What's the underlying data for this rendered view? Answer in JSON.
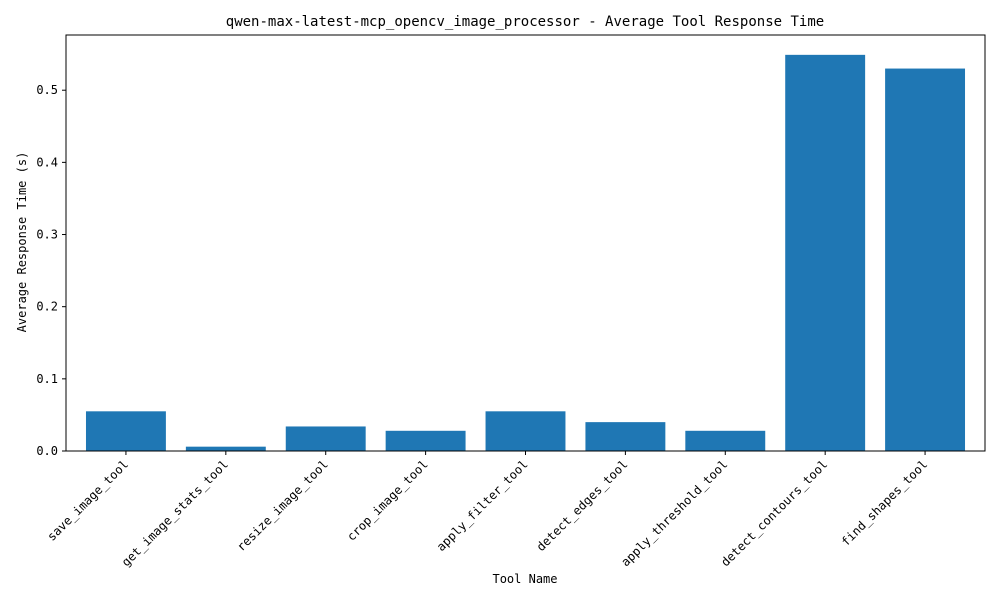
{
  "chart_data": {
    "type": "bar",
    "title": "qwen-max-latest-mcp_opencv_image_processor - Average Tool Response Time",
    "xlabel": "Tool Name",
    "ylabel": "Average Response Time (s)",
    "categories": [
      "save_image_tool",
      "get_image_stats_tool",
      "resize_image_tool",
      "crop_image_tool",
      "apply_filter_tool",
      "detect_edges_tool",
      "apply_threshold_tool",
      "detect_contours_tool",
      "find_shapes_tool"
    ],
    "values": [
      0.055,
      0.006,
      0.034,
      0.028,
      0.055,
      0.04,
      0.028,
      0.549,
      0.53
    ],
    "ylim": [
      0,
      0.5765
    ],
    "yticks": [
      0.0,
      0.1,
      0.2,
      0.3,
      0.4,
      0.5
    ],
    "ytick_labels": [
      "0.0",
      "0.1",
      "0.2",
      "0.3",
      "0.4",
      "0.5"
    ],
    "bar_color": "#1f77b4",
    "grid": false,
    "legend": false
  }
}
